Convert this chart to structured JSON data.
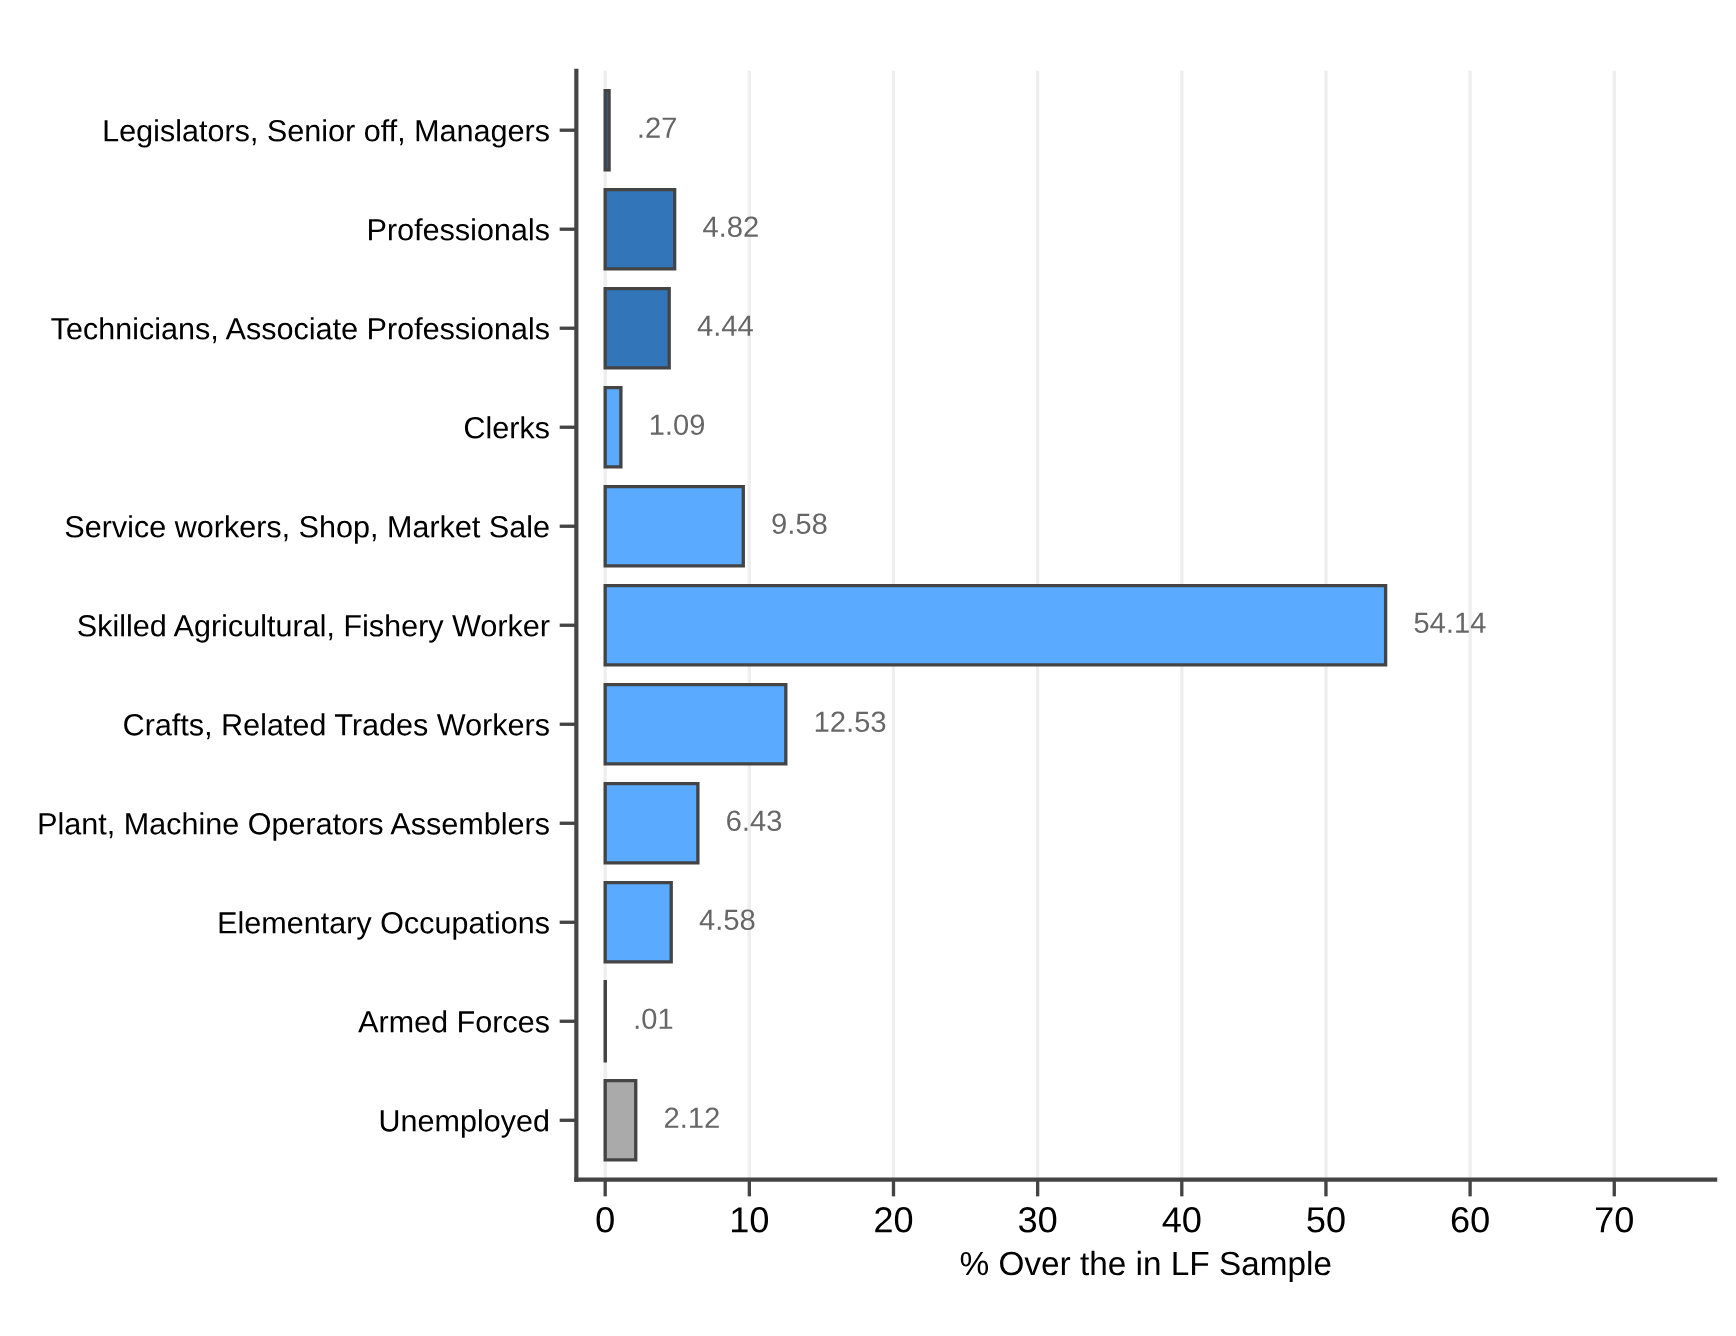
{
  "chart_data": {
    "type": "bar",
    "orientation": "horizontal",
    "xlabel": "% Over the in LF Sample",
    "categories": [
      "Legislators, Senior off, Managers",
      "Professionals",
      "Technicians, Associate Professionals",
      "Clerks",
      "Service workers, Shop, Market Sale",
      "Skilled Agricultural, Fishery Worker",
      "Crafts, Related Trades Workers",
      "Plant, Machine Operators Assemblers",
      "Elementary Occupations",
      "Armed Forces",
      "Unemployed"
    ],
    "values": [
      0.27,
      4.82,
      4.44,
      1.09,
      9.58,
      54.14,
      12.53,
      6.43,
      4.58,
      0.01,
      2.12
    ],
    "value_labels": [
      ".27",
      "4.82",
      "4.44",
      "1.09",
      "9.58",
      "54.14",
      "12.53",
      "6.43",
      "4.58",
      ".01",
      "2.12"
    ],
    "colors": [
      "#3375b9",
      "#3375b9",
      "#3375b9",
      "#5aabff",
      "#5aabff",
      "#5aabff",
      "#5aabff",
      "#5aabff",
      "#5aabff",
      "#5aabff",
      "#aaaaaa"
    ],
    "xlim": [
      -2,
      77
    ],
    "xticks": [
      0,
      10,
      20,
      30,
      40,
      50,
      60,
      70
    ],
    "grid": "x"
  }
}
